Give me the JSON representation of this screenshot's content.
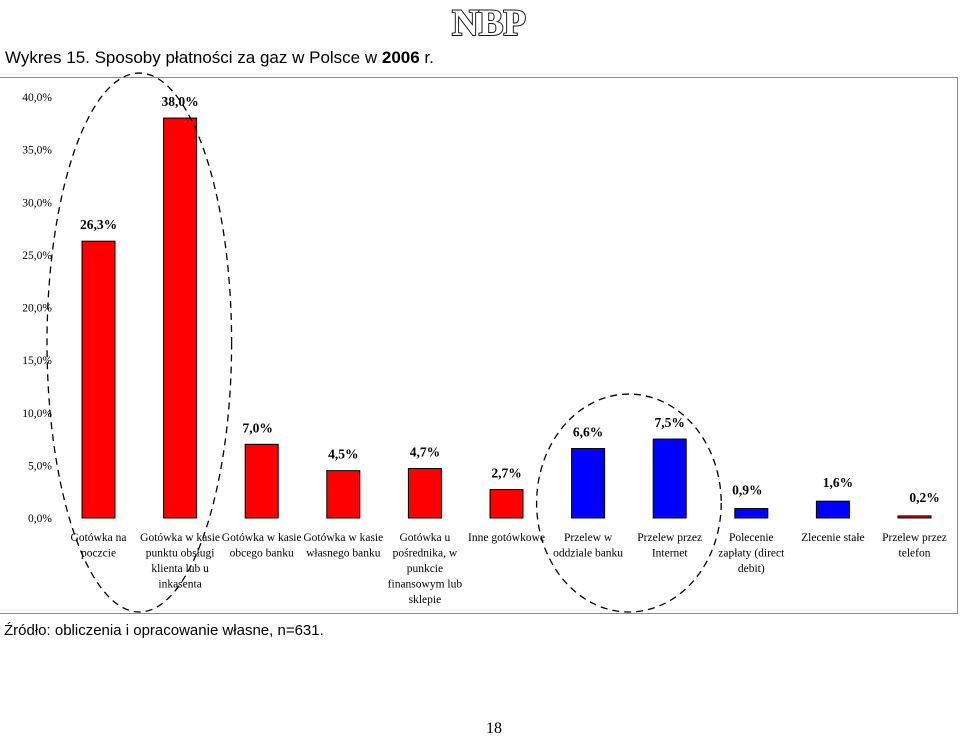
{
  "header": {
    "title_prefix": "Wykres 15. Sposoby płatności za gaz w Polsce w ",
    "title_year": "2006",
    "title_suffix": " r.",
    "logo_text": "NBP"
  },
  "footer": {
    "source": "Źródło: obliczenia i opracowanie własne, n=631.",
    "page_number": "18"
  },
  "colors": {
    "cash": "#ff0000",
    "transfer": "#0000ff",
    "stroke": "#000000",
    "grid": "#808080"
  },
  "chart_data": {
    "type": "bar",
    "title": "",
    "xlabel": "",
    "ylabel": "",
    "ylim": [
      0,
      40
    ],
    "yticks": [
      "0,0%",
      "5,0%",
      "10,0%",
      "15,0%",
      "20,0%",
      "25,0%",
      "30,0%",
      "35,0%",
      "40,0%"
    ],
    "grid": false,
    "legend": "none",
    "categories": [
      [
        "Gotówka na",
        "poczcie"
      ],
      [
        "Gotówka w kasie",
        "punktu obsługi",
        "klienta lub u",
        "inkasenta"
      ],
      [
        "Gotówka w kasie",
        "obcego banku"
      ],
      [
        "Gotówka w kasie",
        "własnego banku"
      ],
      [
        "Gotówka u",
        "pośrednika, w",
        "punkcie",
        "finansowym lub",
        "sklepie"
      ],
      [
        "Inne gotówkowe"
      ],
      [
        "Przelew w",
        "oddziale banku"
      ],
      [
        "Przelew przez",
        "Internet"
      ],
      [
        "Polecenie",
        "zapłaty (direct",
        "debit)"
      ],
      [
        "Zlecenie stałe"
      ],
      [
        "Przelew przez",
        "telefon"
      ]
    ],
    "values": [
      26.3,
      38.0,
      7.0,
      4.5,
      4.7,
      2.7,
      6.6,
      7.5,
      0.9,
      1.6,
      0.2
    ],
    "data_labels": [
      "26,3%",
      "38,0%",
      "7,0%",
      "4,5%",
      "4,7%",
      "2,7%",
      "6,6%",
      "7,5%",
      "0,9%",
      "1,6%",
      "0,2%"
    ],
    "bar_colors": [
      "cash",
      "cash",
      "cash",
      "cash",
      "cash",
      "cash",
      "transfer",
      "transfer",
      "transfer",
      "transfer",
      "cash"
    ],
    "highlights": [
      {
        "type": "ellipse",
        "categories": [
          0,
          1
        ]
      },
      {
        "type": "ellipse",
        "categories": [
          6,
          7
        ]
      }
    ]
  }
}
